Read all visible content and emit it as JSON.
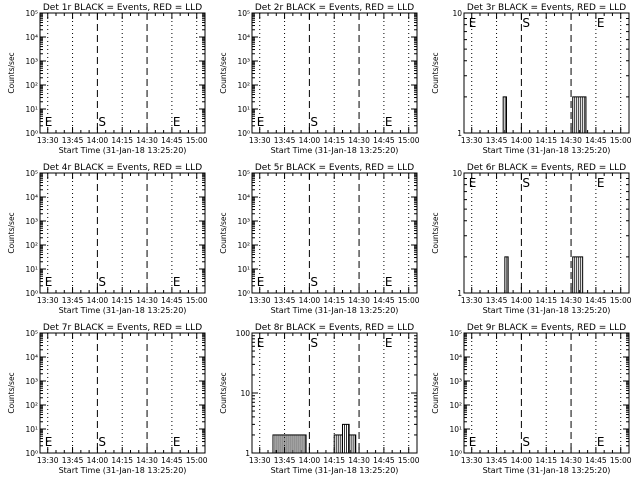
{
  "chart_data": [
    {
      "type": "bar",
      "title": "Det 1r BLACK = Events, RED = LLD",
      "xlabel": "Start Time (31-Jan-18 13:25:20)",
      "ylabel": "Counts/sec",
      "yscale": "log",
      "ylim": [
        1,
        100000
      ],
      "ytick_labels": [
        "10⁰",
        "10¹",
        "10²",
        "10³",
        "10⁴",
        "10⁵"
      ],
      "x_tick_labels": [
        "13:30",
        "13:45",
        "14:00",
        "14:15",
        "14:30",
        "14:45",
        "15:00"
      ],
      "markers": [
        {
          "label": "E",
          "x": "13:30"
        },
        {
          "label": "S",
          "x": "14:00"
        },
        {
          "label": "E",
          "x": "14:45"
        }
      ],
      "series": [
        {
          "color": "#000000",
          "segments": []
        }
      ]
    },
    {
      "type": "bar",
      "title": "Det 2r BLACK = Events, RED = LLD",
      "xlabel": "Start Time (31-Jan-18 13:25:20)",
      "ylabel": "Counts/sec",
      "yscale": "log",
      "ylim": [
        1,
        100000
      ],
      "ytick_labels": [
        "10⁰",
        "10¹",
        "10²",
        "10³",
        "10⁴",
        "10⁵"
      ],
      "x_tick_labels": [
        "13:30",
        "13:45",
        "14:00",
        "14:15",
        "14:30",
        "14:45",
        "15:00"
      ],
      "markers": [
        {
          "label": "E",
          "x": "13:30"
        },
        {
          "label": "S",
          "x": "14:00"
        },
        {
          "label": "E",
          "x": "14:45"
        }
      ],
      "series": [
        {
          "color": "#000000",
          "segments": []
        }
      ]
    },
    {
      "type": "bar",
      "title": "Det 3r BLACK = Events, RED = LLD",
      "xlabel": "Start Time (31-Jan-18 13:25:20)",
      "ylabel": "Counts/sec",
      "yscale": "log",
      "ylim": [
        1,
        10
      ],
      "ytick_labels": [
        "1",
        "10"
      ],
      "x_tick_labels": [
        "13:30",
        "13:45",
        "14:00",
        "14:15",
        "14:30",
        "14:45",
        "15:00"
      ],
      "markers": [
        {
          "label": "E",
          "x": "13:30"
        },
        {
          "label": "S",
          "x": "14:00"
        },
        {
          "label": "E",
          "x": "14:45"
        }
      ],
      "series": [
        {
          "color": "#000000",
          "segments": [
            {
              "t0": "13:49",
              "t1": "13:51",
              "y": 2
            },
            {
              "t0": "14:31",
              "t1": "14:39",
              "y": 2
            }
          ]
        }
      ]
    },
    {
      "type": "bar",
      "title": "Det 4r BLACK = Events, RED = LLD",
      "xlabel": "Start Time (31-Jan-18 13:25:20)",
      "ylabel": "Counts/sec",
      "yscale": "log",
      "ylim": [
        1,
        100000
      ],
      "ytick_labels": [
        "10⁰",
        "10¹",
        "10²",
        "10³",
        "10⁴",
        "10⁵"
      ],
      "x_tick_labels": [
        "13:30",
        "13:45",
        "14:00",
        "14:15",
        "14:30",
        "14:45",
        "15:00"
      ],
      "markers": [
        {
          "label": "E",
          "x": "13:30"
        },
        {
          "label": "S",
          "x": "14:00"
        },
        {
          "label": "E",
          "x": "14:45"
        }
      ],
      "series": [
        {
          "color": "#000000",
          "segments": []
        }
      ]
    },
    {
      "type": "bar",
      "title": "Det 5r BLACK = Events, RED = LLD",
      "xlabel": "Start Time (31-Jan-18 13:25:20)",
      "ylabel": "Counts/sec",
      "yscale": "log",
      "ylim": [
        1,
        100000
      ],
      "ytick_labels": [
        "10⁰",
        "10¹",
        "10²",
        "10³",
        "10⁴",
        "10⁵"
      ],
      "x_tick_labels": [
        "13:30",
        "13:45",
        "14:00",
        "14:15",
        "14:30",
        "14:45",
        "15:00"
      ],
      "markers": [
        {
          "label": "E",
          "x": "13:30"
        },
        {
          "label": "S",
          "x": "14:00"
        },
        {
          "label": "E",
          "x": "14:45"
        }
      ],
      "series": [
        {
          "color": "#000000",
          "segments": []
        }
      ]
    },
    {
      "type": "bar",
      "title": "Det 6r BLACK = Events, RED = LLD",
      "xlabel": "Start Time (31-Jan-18 13:25:20)",
      "ylabel": "Counts/sec",
      "yscale": "log",
      "ylim": [
        1,
        10
      ],
      "ytick_labels": [
        "1",
        "10"
      ],
      "x_tick_labels": [
        "13:30",
        "13:45",
        "14:00",
        "14:15",
        "14:30",
        "14:45",
        "15:00"
      ],
      "markers": [
        {
          "label": "E",
          "x": "13:30"
        },
        {
          "label": "S",
          "x": "14:00"
        },
        {
          "label": "E",
          "x": "14:45"
        }
      ],
      "series": [
        {
          "color": "#000000",
          "segments": [
            {
              "t0": "13:50",
              "t1": "13:52",
              "y": 2
            },
            {
              "t0": "14:31",
              "t1": "14:37",
              "y": 2
            }
          ]
        }
      ]
    },
    {
      "type": "bar",
      "title": "Det 7r BLACK = Events, RED = LLD",
      "xlabel": "Start Time (31-Jan-18 13:25:20)",
      "ylabel": "Counts/sec",
      "yscale": "log",
      "ylim": [
        1,
        100000
      ],
      "ytick_labels": [
        "10⁰",
        "10¹",
        "10²",
        "10³",
        "10⁴",
        "10⁵"
      ],
      "x_tick_labels": [
        "13:30",
        "13:45",
        "14:00",
        "14:15",
        "14:30",
        "14:45",
        "15:00"
      ],
      "markers": [
        {
          "label": "E",
          "x": "13:30"
        },
        {
          "label": "S",
          "x": "14:00"
        },
        {
          "label": "E",
          "x": "14:45"
        }
      ],
      "series": [
        {
          "color": "#000000",
          "segments": []
        }
      ]
    },
    {
      "type": "bar",
      "title": "Det 8r BLACK = Events, RED = LLD",
      "xlabel": "Start Time (31-Jan-18 13:25:20)",
      "ylabel": "Counts/sec",
      "yscale": "log",
      "ylim": [
        1,
        100
      ],
      "ytick_labels": [
        "1",
        "10",
        "100"
      ],
      "x_tick_labels": [
        "13:30",
        "13:45",
        "14:00",
        "14:15",
        "14:30",
        "14:45",
        "15:00"
      ],
      "markers": [
        {
          "label": "E",
          "x": "13:30"
        },
        {
          "label": "S",
          "x": "14:00"
        },
        {
          "label": "E",
          "x": "14:45"
        }
      ],
      "series": [
        {
          "color": "#000000",
          "segments": [
            {
              "t0": "13:38",
              "t1": "13:58",
              "y": 2
            },
            {
              "t0": "14:15",
              "t1": "14:20",
              "y": 2
            },
            {
              "t0": "14:20",
              "t1": "14:24",
              "y": 3
            },
            {
              "t0": "14:24",
              "t1": "14:28",
              "y": 2
            }
          ]
        }
      ]
    },
    {
      "type": "bar",
      "title": "Det 9r BLACK = Events, RED = LLD",
      "xlabel": "Start Time (31-Jan-18 13:25:20)",
      "ylabel": "Counts/sec",
      "yscale": "log",
      "ylim": [
        1,
        100000
      ],
      "ytick_labels": [
        "10⁰",
        "10¹",
        "10²",
        "10³",
        "10⁴",
        "10⁵"
      ],
      "x_tick_labels": [
        "13:30",
        "13:45",
        "14:00",
        "14:15",
        "14:30",
        "14:45",
        "15:00"
      ],
      "markers": [
        {
          "label": "E",
          "x": "13:30"
        },
        {
          "label": "S",
          "x": "14:00"
        },
        {
          "label": "E",
          "x": "14:45"
        }
      ],
      "series": [
        {
          "color": "#000000",
          "segments": []
        }
      ]
    }
  ]
}
